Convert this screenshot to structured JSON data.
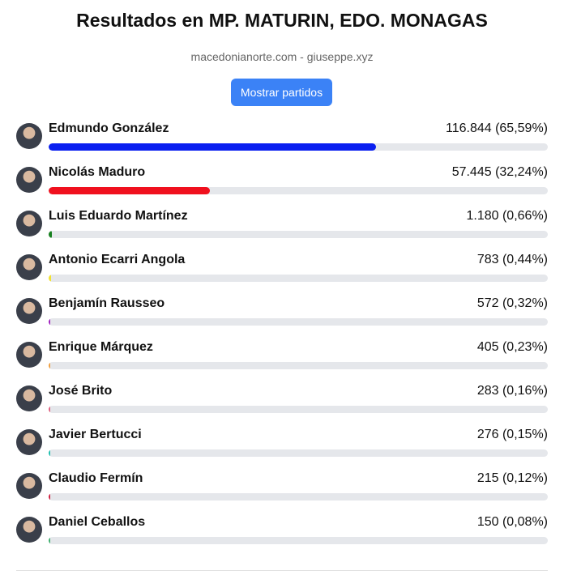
{
  "header": {
    "title": "Resultados en MP. MATURIN, EDO. MONAGAS",
    "subtitle": "macedonianorte.com - giuseppe.xyz",
    "button": "Mostrar partidos"
  },
  "xlim": [
    0,
    100
  ],
  "candidates": [
    {
      "name": "Edmundo González",
      "label": "116.844 (65,59%)",
      "percent": 65.59,
      "color": "#0a1ff0"
    },
    {
      "name": "Nicolás Maduro",
      "label": "57.445 (32,24%)",
      "percent": 32.24,
      "color": "#f0101e"
    },
    {
      "name": "Luis Eduardo Martínez",
      "label": "1.180 (0,66%)",
      "percent": 0.66,
      "color": "#17801f"
    },
    {
      "name": "Antonio Ecarri Angola",
      "label": "783 (0,44%)",
      "percent": 0.44,
      "color": "#f2e232"
    },
    {
      "name": "Benjamín Rausseo",
      "label": "572 (0,32%)",
      "percent": 0.32,
      "color": "#a020c0"
    },
    {
      "name": "Enrique Márquez",
      "label": "405 (0,23%)",
      "percent": 0.23,
      "color": "#f0a040"
    },
    {
      "name": "José Brito",
      "label": "283 (0,16%)",
      "percent": 0.16,
      "color": "#e06080"
    },
    {
      "name": "Javier Bertucci",
      "label": "276 (0,15%)",
      "percent": 0.15,
      "color": "#20c0b0"
    },
    {
      "name": "Claudio Fermín",
      "label": "215 (0,12%)",
      "percent": 0.12,
      "color": "#d02040"
    },
    {
      "name": "Daniel Ceballos",
      "label": "150 (0,08%)",
      "percent": 0.08,
      "color": "#40b070"
    }
  ]
}
